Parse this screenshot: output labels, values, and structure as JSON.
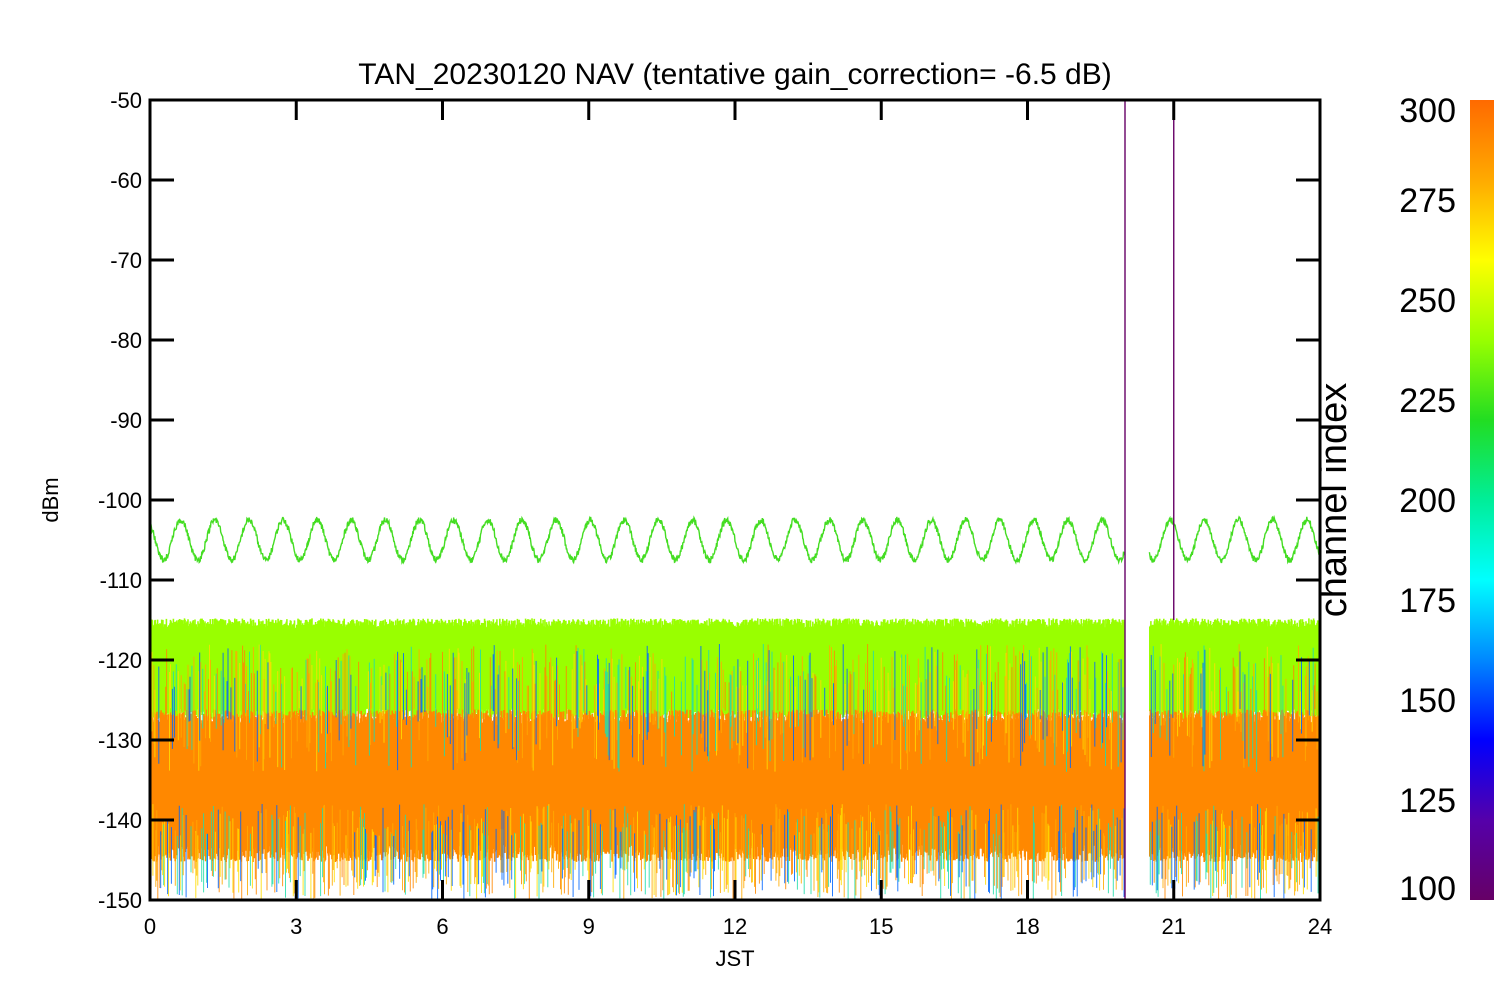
{
  "chart_data": {
    "type": "line",
    "title": "TAN_20230120 NAV (tentative gain_correction= -6.5 dB)",
    "xlabel": "JST",
    "ylabel": "dBm",
    "xlim": [
      0,
      24
    ],
    "ylim": [
      -150,
      -50
    ],
    "x_ticks": [
      "0",
      "3",
      "6",
      "9",
      "12",
      "15",
      "18",
      "21",
      "24"
    ],
    "y_ticks": [
      "-50",
      "-60",
      "-70",
      "-80",
      "-90",
      "-100",
      "-110",
      "-120",
      "-130",
      "-140",
      "-150"
    ],
    "grid": false,
    "data_gap": [
      20.0,
      20.5
    ],
    "series": [
      {
        "color": "#44dd22",
        "description_values": {
          "center_dBm": -105,
          "amplitude_dBm": 2.5,
          "period_hours": 0.7
        }
      },
      {
        "color": "#99ff00",
        "band_dBm": [
          -126,
          -116
        ]
      },
      {
        "color": "#ff8800",
        "band_dBm": [
          -143,
          -128
        ]
      }
    ],
    "colorbar": {
      "title": "channel index",
      "range": [
        100,
        300
      ],
      "ticks": [
        "300",
        "275",
        "250",
        "225",
        "200",
        "175",
        "150",
        "125",
        "100"
      ],
      "colors": [
        "#ff6a00",
        "#ffaa00",
        "#ffff00",
        "#99ff00",
        "#22dd22",
        "#00ee99",
        "#00ffff",
        "#0088ff",
        "#0000ff",
        "#5500aa",
        "#660066"
      ]
    }
  }
}
